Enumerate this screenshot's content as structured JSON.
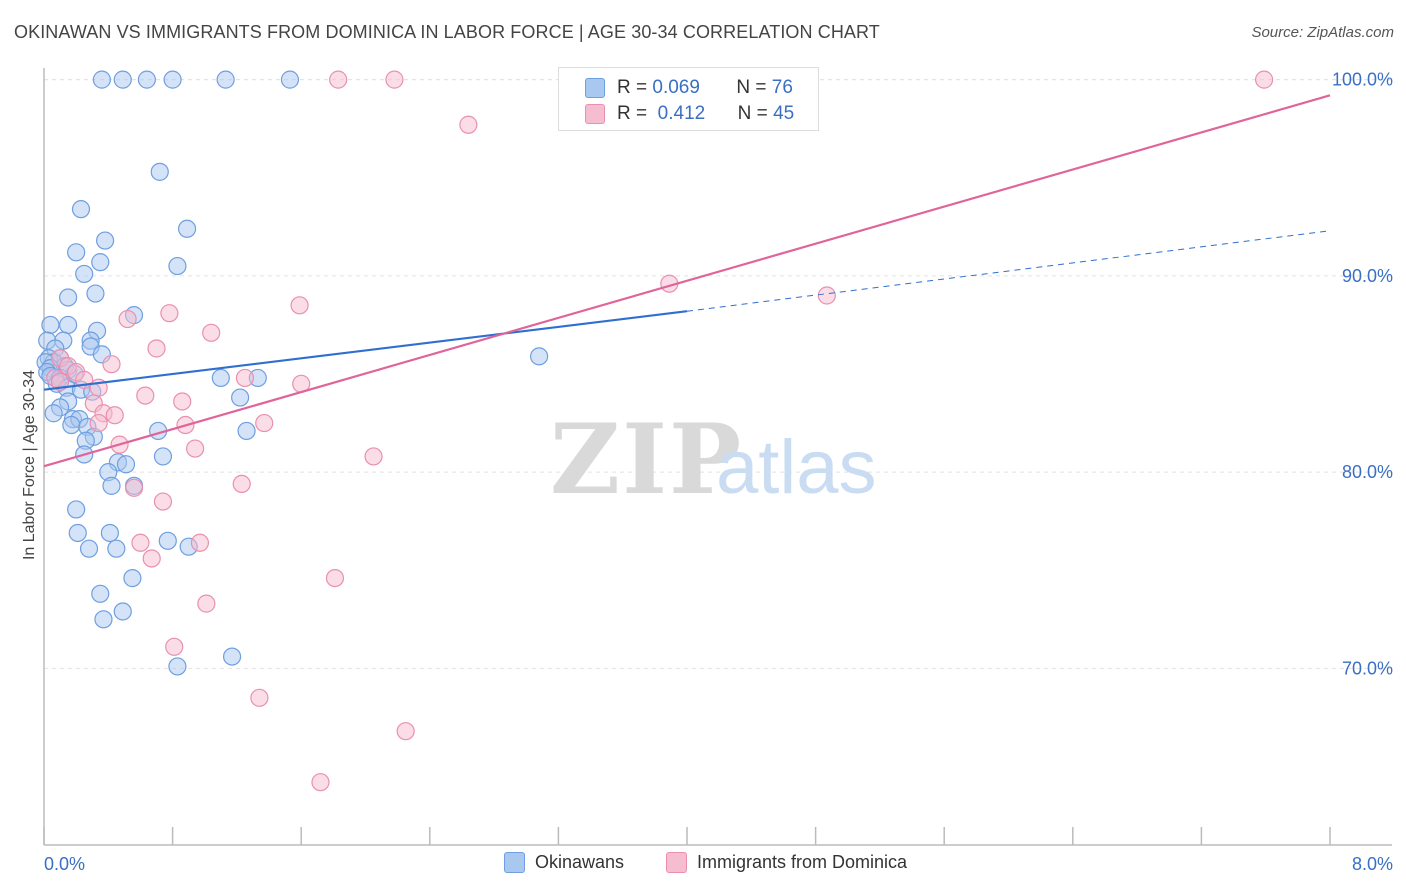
{
  "title": "OKINAWAN VS IMMIGRANTS FROM DOMINICA IN LABOR FORCE | AGE 30-34 CORRELATION CHART",
  "source": "Source: ZipAtlas.com",
  "watermark": {
    "zip": "ZIP",
    "atlas": "atlas"
  },
  "legend": {
    "r_label": "R =",
    "n_label": "N =",
    "rows": [
      {
        "r": "0.069",
        "n": "76"
      },
      {
        "r": "0.412",
        "n": "45"
      }
    ]
  },
  "bottom_legend": [
    "Okinawans",
    "Immigrants from Dominica"
  ],
  "colors": {
    "blue_fill": "#a9c8f0",
    "blue_stroke": "#6f9fe0",
    "blue_line": "#2f6fd0",
    "pink_fill": "#f6bcd0",
    "pink_stroke": "#e990b0",
    "pink_line": "#e0649a",
    "tick_text": "#3a6fc4"
  },
  "chart_data": {
    "type": "scatter",
    "title": "OKINAWAN VS IMMIGRANTS FROM DOMINICA IN LABOR FORCE | AGE 30-34 CORRELATION CHART",
    "xlabel": "",
    "ylabel": "In Labor Force | Age 30-34",
    "xlim": [
      0.0,
      8.0
    ],
    "ylim": [
      61.0,
      101.0
    ],
    "x_tick_labels": [
      "0.0%",
      "8.0%"
    ],
    "y_ticks": [
      70,
      80,
      90,
      100
    ],
    "y_tick_labels": [
      "70.0%",
      "80.0%",
      "90.0%",
      "100.0%"
    ],
    "grid": true,
    "series": [
      {
        "name": "Okinawans",
        "color": "#a9c8f0",
        "trend": {
          "x0": 0.0,
          "y0": 84.2,
          "x1": 4.0,
          "y1": 88.2,
          "dashed_to_x": 8.0,
          "dashed_to_y": 92.3
        },
        "points": [
          [
            0.36,
            100.0
          ],
          [
            0.49,
            100.0
          ],
          [
            0.64,
            100.0
          ],
          [
            0.8,
            100.0
          ],
          [
            1.13,
            100.0
          ],
          [
            1.53,
            100.0
          ],
          [
            0.72,
            95.3
          ],
          [
            0.23,
            93.4
          ],
          [
            0.38,
            91.8
          ],
          [
            0.89,
            92.4
          ],
          [
            0.2,
            91.2
          ],
          [
            0.35,
            90.7
          ],
          [
            0.83,
            90.5
          ],
          [
            0.25,
            90.1
          ],
          [
            0.32,
            89.1
          ],
          [
            0.15,
            88.9
          ],
          [
            0.56,
            88.0
          ],
          [
            0.15,
            87.5
          ],
          [
            0.33,
            87.2
          ],
          [
            0.04,
            87.5
          ],
          [
            0.02,
            86.7
          ],
          [
            0.12,
            86.7
          ],
          [
            0.29,
            86.7
          ],
          [
            0.29,
            86.4
          ],
          [
            0.07,
            86.3
          ],
          [
            0.36,
            86.0
          ],
          [
            0.1,
            85.8
          ],
          [
            0.03,
            85.8
          ],
          [
            0.06,
            85.6
          ],
          [
            0.01,
            85.6
          ],
          [
            0.13,
            85.4
          ],
          [
            0.04,
            85.3
          ],
          [
            0.15,
            85.2
          ],
          [
            0.02,
            85.1
          ],
          [
            0.04,
            84.9
          ],
          [
            0.1,
            84.8
          ],
          [
            1.1,
            84.8
          ],
          [
            1.33,
            84.8
          ],
          [
            0.08,
            84.5
          ],
          [
            0.14,
            84.3
          ],
          [
            0.23,
            84.2
          ],
          [
            0.3,
            84.1
          ],
          [
            1.22,
            83.8
          ],
          [
            0.15,
            83.6
          ],
          [
            0.1,
            83.3
          ],
          [
            0.06,
            83.0
          ],
          [
            0.18,
            82.7
          ],
          [
            0.22,
            82.7
          ],
          [
            0.17,
            82.4
          ],
          [
            0.27,
            82.3
          ],
          [
            0.71,
            82.1
          ],
          [
            1.26,
            82.1
          ],
          [
            0.31,
            81.8
          ],
          [
            0.26,
            81.6
          ],
          [
            0.25,
            80.9
          ],
          [
            0.74,
            80.8
          ],
          [
            0.46,
            80.5
          ],
          [
            0.51,
            80.4
          ],
          [
            0.4,
            80.0
          ],
          [
            0.42,
            79.3
          ],
          [
            0.56,
            79.3
          ],
          [
            0.2,
            78.1
          ],
          [
            0.21,
            76.9
          ],
          [
            0.41,
            76.9
          ],
          [
            0.77,
            76.5
          ],
          [
            0.28,
            76.1
          ],
          [
            0.45,
            76.1
          ],
          [
            0.9,
            76.2
          ],
          [
            0.55,
            74.6
          ],
          [
            0.35,
            73.8
          ],
          [
            0.49,
            72.9
          ],
          [
            0.37,
            72.5
          ],
          [
            1.17,
            70.6
          ],
          [
            0.83,
            70.1
          ],
          [
            3.08,
            85.9
          ],
          [
            0.19,
            85.0
          ]
        ]
      },
      {
        "name": "Immigrants from Dominica",
        "color": "#f6bcd0",
        "trend": {
          "x0": 0.0,
          "y0": 80.3,
          "x1": 8.0,
          "y1": 99.2
        },
        "points": [
          [
            1.83,
            100.0
          ],
          [
            2.18,
            100.0
          ],
          [
            4.18,
            100.0
          ],
          [
            7.59,
            100.0
          ],
          [
            2.64,
            97.7
          ],
          [
            3.89,
            89.6
          ],
          [
            4.87,
            89.0
          ],
          [
            1.59,
            88.5
          ],
          [
            0.78,
            88.1
          ],
          [
            0.52,
            87.8
          ],
          [
            1.04,
            87.1
          ],
          [
            0.7,
            86.3
          ],
          [
            0.1,
            85.8
          ],
          [
            0.15,
            85.4
          ],
          [
            0.42,
            85.5
          ],
          [
            0.2,
            85.1
          ],
          [
            0.07,
            84.8
          ],
          [
            0.1,
            84.6
          ],
          [
            0.25,
            84.7
          ],
          [
            0.34,
            84.3
          ],
          [
            1.25,
            84.8
          ],
          [
            1.6,
            84.5
          ],
          [
            0.63,
            83.9
          ],
          [
            0.86,
            83.6
          ],
          [
            0.31,
            83.5
          ],
          [
            0.37,
            83.0
          ],
          [
            0.44,
            82.9
          ],
          [
            1.37,
            82.5
          ],
          [
            0.88,
            82.4
          ],
          [
            0.34,
            82.5
          ],
          [
            0.47,
            81.4
          ],
          [
            0.94,
            81.2
          ],
          [
            2.05,
            80.8
          ],
          [
            1.23,
            79.4
          ],
          [
            0.56,
            79.2
          ],
          [
            0.74,
            78.5
          ],
          [
            0.6,
            76.4
          ],
          [
            0.97,
            76.4
          ],
          [
            0.67,
            75.6
          ],
          [
            1.81,
            74.6
          ],
          [
            1.01,
            73.3
          ],
          [
            0.81,
            71.1
          ],
          [
            1.34,
            68.5
          ],
          [
            2.25,
            66.8
          ],
          [
            1.72,
            64.2
          ]
        ]
      }
    ]
  }
}
